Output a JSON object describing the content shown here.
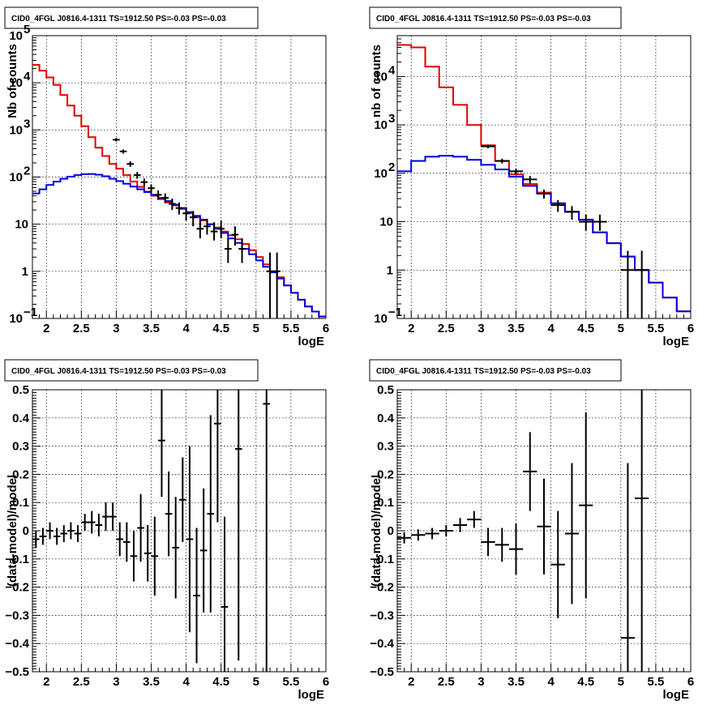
{
  "chart_data": [
    {
      "type": "line",
      "title": "CID0_4FGL J0816.4-1311 TS=1912.50 PS=-0.03 PS=-0.03",
      "xlabel": "logE",
      "ylabel": "Nb of counts",
      "xlim": [
        1.8,
        6.0
      ],
      "ylim": [
        0.1,
        100000
      ],
      "yscale": "log",
      "grid": true,
      "xticks": [
        2,
        2.5,
        3,
        3.5,
        4,
        4.5,
        5,
        5.5,
        6
      ],
      "yticks": [
        {
          "v": 0.1,
          "b": "10",
          "e": "−1"
        },
        {
          "v": 1,
          "b": "1",
          "e": ""
        },
        {
          "v": 10,
          "b": "10",
          "e": ""
        },
        {
          "v": 100,
          "b": "10",
          "e": "2"
        },
        {
          "v": 1000,
          "b": "10",
          "e": "3"
        },
        {
          "v": 10000,
          "b": "10",
          "e": "4"
        },
        {
          "v": 100000,
          "b": "10",
          "e": "5"
        }
      ],
      "bin_width": 0.1,
      "series": [
        {
          "color": "#e00000",
          "x": [
            1.8,
            1.9,
            2.0,
            2.1,
            2.2,
            2.3,
            2.4,
            2.5,
            2.6,
            2.7,
            2.8,
            2.9,
            3.0,
            3.1,
            3.2,
            3.3,
            3.4,
            3.5,
            3.6,
            3.7,
            3.8,
            3.9,
            4.0,
            4.1,
            4.2,
            4.3,
            4.4,
            4.5,
            4.6,
            4.7,
            4.8,
            4.9,
            5.0,
            5.1,
            5.2,
            5.3,
            5.4,
            5.5,
            5.6,
            5.7,
            5.8,
            5.9
          ],
          "values": [
            24000,
            18000,
            13000,
            9000,
            5500,
            3300,
            2000,
            1200,
            700,
            420,
            280,
            190,
            150,
            110,
            80,
            62,
            49,
            40,
            34,
            29,
            25,
            21,
            17,
            14,
            12,
            10,
            8.5,
            7,
            5.8,
            4.8,
            3.8,
            2.8,
            2.0,
            1.4,
            1.0,
            0.75,
            0.5,
            0.35,
            0.25,
            0.18,
            0.14,
            0.11
          ]
        },
        {
          "color": "#0000e0",
          "x": [
            1.8,
            1.9,
            2.0,
            2.1,
            2.2,
            2.3,
            2.4,
            2.5,
            2.6,
            2.7,
            2.8,
            2.9,
            3.0,
            3.1,
            3.2,
            3.3,
            3.4,
            3.5,
            3.6,
            3.7,
            3.8,
            3.9,
            4.0,
            4.1,
            4.2,
            4.3,
            4.4,
            4.5,
            4.6,
            4.7,
            4.8,
            4.9,
            5.0,
            5.1,
            5.2,
            5.3,
            5.4,
            5.5,
            5.6,
            5.7,
            5.8,
            5.9
          ],
          "values": [
            45,
            55,
            68,
            80,
            92,
            102,
            110,
            115,
            116,
            112,
            104,
            92,
            82,
            72,
            63,
            55,
            48,
            42,
            36,
            31,
            26,
            22,
            18,
            15,
            12.5,
            10,
            8,
            6.5,
            5,
            4,
            3,
            2.3,
            1.7,
            1.25,
            0.95,
            0.7,
            0.5,
            0.35,
            0.25,
            0.18,
            0.14,
            0.11
          ]
        }
      ],
      "points": [
        {
          "x": 3.0,
          "y": 620,
          "ylo": 570,
          "yhi": 670
        },
        {
          "x": 3.1,
          "y": 350,
          "ylo": 315,
          "yhi": 385
        },
        {
          "x": 3.2,
          "y": 190,
          "ylo": 165,
          "yhi": 215
        },
        {
          "x": 3.3,
          "y": 110,
          "ylo": 92,
          "yhi": 128
        },
        {
          "x": 3.4,
          "y": 78,
          "ylo": 63,
          "yhi": 93
        },
        {
          "x": 3.5,
          "y": 58,
          "ylo": 46,
          "yhi": 70
        },
        {
          "x": 3.6,
          "y": 42,
          "ylo": 33,
          "yhi": 52
        },
        {
          "x": 3.7,
          "y": 36,
          "ylo": 28,
          "yhi": 45
        },
        {
          "x": 3.8,
          "y": 27,
          "ylo": 20,
          "yhi": 35
        },
        {
          "x": 3.9,
          "y": 22,
          "ylo": 16,
          "yhi": 29
        },
        {
          "x": 4.0,
          "y": 17,
          "ylo": 12,
          "yhi": 23
        },
        {
          "x": 4.1,
          "y": 14,
          "ylo": 9,
          "yhi": 19
        },
        {
          "x": 4.2,
          "y": 8,
          "ylo": 5,
          "yhi": 12
        },
        {
          "x": 4.3,
          "y": 9,
          "ylo": 6,
          "yhi": 13
        },
        {
          "x": 4.4,
          "y": 7,
          "ylo": 4.5,
          "yhi": 11
        },
        {
          "x": 4.5,
          "y": 8,
          "ylo": 5,
          "yhi": 12
        },
        {
          "x": 4.6,
          "y": 3,
          "ylo": 1.5,
          "yhi": 5
        },
        {
          "x": 4.7,
          "y": 6,
          "ylo": 3.5,
          "yhi": 9
        },
        {
          "x": 4.8,
          "y": 3,
          "ylo": 1.5,
          "yhi": 5
        },
        {
          "x": 5.2,
          "y": 1,
          "ylo": 0.1,
          "yhi": 2.5
        },
        {
          "x": 5.3,
          "y": 1,
          "ylo": 0.1,
          "yhi": 2.5
        }
      ]
    },
    {
      "type": "line",
      "title": "CID0_4FGL J0816.4-1311 TS=1912.50 PS=-0.03 PS=-0.03",
      "xlabel": "logE",
      "ylabel": "nb of counts",
      "xlim": [
        1.8,
        6.0
      ],
      "ylim": [
        0.1,
        70000
      ],
      "yscale": "log",
      "grid": true,
      "xticks": [
        2,
        2.5,
        3,
        3.5,
        4,
        4.5,
        5,
        5.5,
        6
      ],
      "yticks": [
        {
          "v": 0.1,
          "b": "10",
          "e": "−1"
        },
        {
          "v": 1,
          "b": "1",
          "e": ""
        },
        {
          "v": 10,
          "b": "10",
          "e": ""
        },
        {
          "v": 100,
          "b": "10",
          "e": "2"
        },
        {
          "v": 1000,
          "b": "10",
          "e": "3"
        },
        {
          "v": 10000,
          "b": "10",
          "e": "4"
        }
      ],
      "bin_width": 0.2,
      "series": [
        {
          "color": "#e00000",
          "x": [
            1.8,
            2.0,
            2.2,
            2.4,
            2.6,
            2.8,
            3.0,
            3.2,
            3.4,
            3.6,
            3.8,
            4.0,
            4.2,
            4.4,
            4.6,
            4.8,
            5.0,
            5.2,
            5.4,
            5.6,
            5.8
          ],
          "values": [
            45000,
            40000,
            16000,
            6000,
            2600,
            1000,
            380,
            180,
            95,
            60,
            40,
            24,
            16,
            11,
            6,
            3.6,
            1.9,
            1.0,
            0.55,
            0.27,
            0.14
          ]
        },
        {
          "color": "#0000e0",
          "x": [
            1.8,
            2.0,
            2.2,
            2.4,
            2.6,
            2.8,
            3.0,
            3.2,
            3.4,
            3.6,
            3.8,
            4.0,
            4.2,
            4.4,
            4.6,
            4.8,
            5.0,
            5.2,
            5.4,
            5.6,
            5.8
          ],
          "values": [
            110,
            180,
            220,
            230,
            220,
            190,
            150,
            120,
            85,
            55,
            38,
            24,
            16,
            11,
            6,
            3.6,
            1.9,
            1.0,
            0.55,
            0.27,
            0.14
          ]
        }
      ],
      "points": [
        {
          "x": 3.1,
          "y": 360,
          "ylo": 330,
          "yhi": 390
        },
        {
          "x": 3.3,
          "y": 180,
          "ylo": 160,
          "yhi": 200
        },
        {
          "x": 3.5,
          "y": 110,
          "ylo": 95,
          "yhi": 125
        },
        {
          "x": 3.7,
          "y": 75,
          "ylo": 62,
          "yhi": 88
        },
        {
          "x": 3.9,
          "y": 38,
          "ylo": 30,
          "yhi": 46
        },
        {
          "x": 4.1,
          "y": 22,
          "ylo": 16,
          "yhi": 28
        },
        {
          "x": 4.3,
          "y": 16,
          "ylo": 11,
          "yhi": 21
        },
        {
          "x": 4.5,
          "y": 10,
          "ylo": 6.5,
          "yhi": 14
        },
        {
          "x": 4.7,
          "y": 10,
          "ylo": 6.5,
          "yhi": 14
        },
        {
          "x": 5.1,
          "y": 1,
          "ylo": 0.1,
          "yhi": 2.5
        },
        {
          "x": 5.3,
          "y": 1,
          "ylo": 0.1,
          "yhi": 2.5
        }
      ]
    },
    {
      "type": "scatter",
      "title": "CID0_4FGL J0816.4-1311 TS=1912.50 PS=-0.03 PS=-0.03",
      "xlabel": "logE",
      "ylabel": "(data-model)/model",
      "xlim": [
        1.8,
        6.0
      ],
      "ylim": [
        -0.5,
        0.5
      ],
      "grid": true,
      "xticks": [
        2,
        2.5,
        3,
        3.5,
        4,
        4.5,
        5,
        5.5,
        6
      ],
      "yticks": [
        -0.5,
        -0.4,
        -0.3,
        -0.2,
        -0.1,
        0,
        0.1,
        0.2,
        0.3,
        0.4,
        0.5
      ],
      "bin_width": 0.1,
      "points": [
        {
          "x": 1.85,
          "y": -0.03,
          "err": 0.03
        },
        {
          "x": 1.95,
          "y": -0.02,
          "err": 0.03
        },
        {
          "x": 2.05,
          "y": 0.0,
          "err": 0.03
        },
        {
          "x": 2.15,
          "y": -0.02,
          "err": 0.03
        },
        {
          "x": 2.25,
          "y": -0.01,
          "err": 0.03
        },
        {
          "x": 2.35,
          "y": 0.0,
          "err": 0.03
        },
        {
          "x": 2.45,
          "y": -0.01,
          "err": 0.03
        },
        {
          "x": 2.55,
          "y": 0.03,
          "err": 0.03
        },
        {
          "x": 2.65,
          "y": 0.03,
          "err": 0.04
        },
        {
          "x": 2.75,
          "y": 0.02,
          "err": 0.04
        },
        {
          "x": 2.85,
          "y": 0.05,
          "err": 0.05
        },
        {
          "x": 2.95,
          "y": 0.05,
          "err": 0.05
        },
        {
          "x": 3.05,
          "y": -0.03,
          "err": 0.06
        },
        {
          "x": 3.15,
          "y": -0.04,
          "err": 0.07
        },
        {
          "x": 3.25,
          "y": -0.09,
          "err": 0.09
        },
        {
          "x": 3.35,
          "y": 0.01,
          "err": 0.12
        },
        {
          "x": 3.45,
          "y": -0.08,
          "err": 0.1
        },
        {
          "x": 3.55,
          "y": -0.09,
          "err": 0.14
        },
        {
          "x": 3.65,
          "y": 0.32,
          "err": 0.2
        },
        {
          "x": 3.75,
          "y": 0.06,
          "err": 0.15
        },
        {
          "x": 3.85,
          "y": -0.06,
          "err": 0.18
        },
        {
          "x": 3.95,
          "y": 0.11,
          "err": 0.15
        },
        {
          "x": 4.05,
          "y": -0.03,
          "err": 0.33
        },
        {
          "x": 4.15,
          "y": -0.23,
          "err": 0.24
        },
        {
          "x": 4.25,
          "y": -0.07,
          "err": 0.22
        },
        {
          "x": 4.35,
          "y": 0.06,
          "err": 0.35
        },
        {
          "x": 4.45,
          "y": 0.38,
          "err": 0.35
        },
        {
          "x": 4.55,
          "y": -0.27,
          "err": 0.32
        },
        {
          "x": 4.75,
          "y": 0.29,
          "err": 0.75
        },
        {
          "x": 5.15,
          "y": 0.45,
          "err": 1.0
        }
      ]
    },
    {
      "type": "scatter",
      "title": "CID0_4FGL J0816.4-1311 TS=1912.50 PS=-0.03 PS=-0.03",
      "xlabel": "logE",
      "ylabel": "(data-model)/model",
      "xlim": [
        1.8,
        6.0
      ],
      "ylim": [
        -0.5,
        0.5
      ],
      "grid": true,
      "xticks": [
        2,
        2.5,
        3,
        3.5,
        4,
        4.5,
        5,
        5.5,
        6
      ],
      "yticks": [
        -0.5,
        -0.4,
        -0.3,
        -0.2,
        -0.1,
        0,
        0.1,
        0.2,
        0.3,
        0.4,
        0.5
      ],
      "bin_width": 0.2,
      "points": [
        {
          "x": 1.9,
          "y": -0.025,
          "err": 0.02
        },
        {
          "x": 2.1,
          "y": -0.015,
          "err": 0.02
        },
        {
          "x": 2.3,
          "y": -0.01,
          "err": 0.02
        },
        {
          "x": 2.5,
          "y": 0.0,
          "err": 0.02
        },
        {
          "x": 2.7,
          "y": 0.02,
          "err": 0.025
        },
        {
          "x": 2.9,
          "y": 0.04,
          "err": 0.03
        },
        {
          "x": 3.1,
          "y": -0.04,
          "err": 0.05
        },
        {
          "x": 3.3,
          "y": -0.05,
          "err": 0.06
        },
        {
          "x": 3.5,
          "y": -0.065,
          "err": 0.09
        },
        {
          "x": 3.7,
          "y": 0.21,
          "err": 0.14
        },
        {
          "x": 3.9,
          "y": 0.015,
          "err": 0.17
        },
        {
          "x": 4.1,
          "y": -0.12,
          "err": 0.19
        },
        {
          "x": 4.3,
          "y": -0.01,
          "err": 0.25
        },
        {
          "x": 4.5,
          "y": 0.09,
          "err": 0.33
        },
        {
          "x": 5.1,
          "y": -0.38,
          "err": 0.62
        },
        {
          "x": 5.3,
          "y": 0.115,
          "err": 0.7
        }
      ]
    }
  ]
}
